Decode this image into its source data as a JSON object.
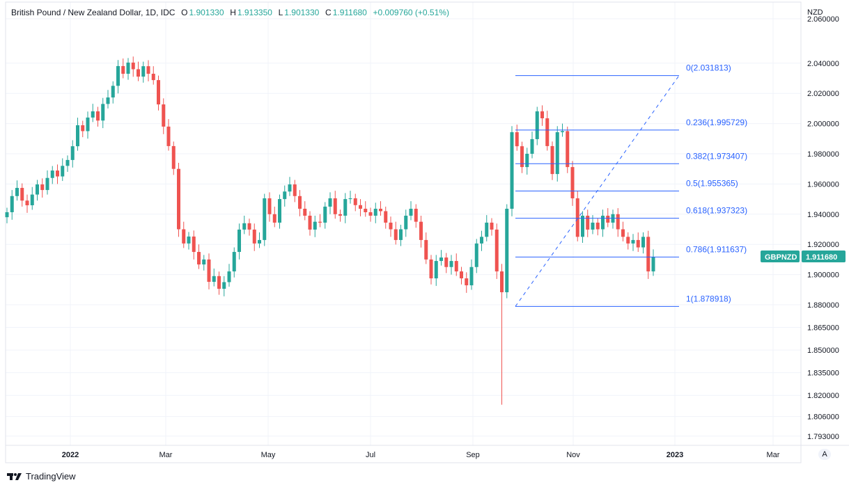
{
  "legend": {
    "symbol": "British Pound / New Zealand Dollar, 1D, IDC",
    "open_label": "O",
    "open": "1.901330",
    "high_label": "H",
    "high": "1.913350",
    "low_label": "L",
    "low": "1.901330",
    "close_label": "C",
    "close": "1.911680",
    "change": "+0.009760 (+0.51%)"
  },
  "price_axis": {
    "currency": "NZD",
    "auto_label": "A"
  },
  "last_price": {
    "ticker": "GBPNZD",
    "value": "1.911680"
  },
  "brand": "TradingView",
  "colors": {
    "up": "#26a69a",
    "down": "#ef5350",
    "fib": "#2962ff",
    "grid": "#f0f3fa"
  },
  "chart_data": {
    "type": "candlestick",
    "title": "British Pound / New Zealand Dollar, 1D, IDC",
    "ylabel": "NZD",
    "ylim": [
      1.793,
      2.06
    ],
    "y_ticks": [
      "2.060000",
      "2.040000",
      "2.020000",
      "2.000000",
      "1.980000",
      "1.960000",
      "1.940000",
      "1.920000",
      "1.900000",
      "1.880000",
      "1.865000",
      "1.850000",
      "1.835000",
      "1.820000",
      "1.806000",
      "1.793000"
    ],
    "x_ticks": [
      "2022",
      "Mar",
      "May",
      "Jul",
      "Sep",
      "Nov",
      "2023",
      "Mar"
    ],
    "closes": [
      1.9413,
      1.952,
      1.9574,
      1.949,
      1.9459,
      1.953,
      1.9597,
      1.956,
      1.964,
      1.9689,
      1.965,
      1.972,
      1.9759,
      1.985,
      1.9989,
      1.995,
      2.004,
      2.0081,
      2.002,
      2.013,
      2.0173,
      2.025,
      2.0381,
      2.033,
      2.0404,
      2.036,
      2.0311,
      2.038,
      2.033,
      2.0288,
      2.0127,
      1.998,
      1.9851,
      1.97,
      1.93,
      1.9206,
      1.9252,
      1.915,
      1.9067,
      1.91,
      1.8952,
      1.899,
      1.8906,
      1.895,
      1.9021,
      1.915,
      1.9298,
      1.934,
      1.9298,
      1.9206,
      1.9229,
      1.9505,
      1.94,
      1.9344,
      1.95,
      1.955,
      1.9597,
      1.952,
      1.9436,
      1.939,
      1.9298,
      1.935,
      1.9344,
      1.945,
      1.9505,
      1.94,
      1.939,
      1.95,
      1.9505,
      1.946,
      1.9436,
      1.9413,
      1.939,
      1.9436,
      1.942,
      1.9344,
      1.93,
      1.9229,
      1.93,
      1.939,
      1.9436,
      1.935,
      1.9229,
      1.91,
      1.8975,
      1.909,
      1.9113,
      1.905,
      1.909,
      1.9021,
      1.8975,
      1.8929,
      1.905,
      1.9206,
      1.925,
      1.9344,
      1.9298,
      1.9021,
      1.8883,
      1.9436,
      1.9943,
      1.985,
      1.9712,
      1.98,
      1.9897,
      2.0081,
      2.0035,
      1.9851,
      1.9666,
      1.9943,
      1.995,
      1.9712,
      1.9505,
      1.925,
      1.939,
      1.9298,
      1.9344,
      1.93,
      1.939,
      1.9344,
      1.94,
      1.93,
      1.925,
      1.9206,
      1.9229,
      1.918,
      1.925,
      1.9021,
      1.91168
    ],
    "first_open": 1.938,
    "notable_low": {
      "index": 98,
      "value": 1.8138
    },
    "fibonacci": [
      {
        "label": "0(2.031813)",
        "value": 2.031813
      },
      {
        "label": "0.236(1.995729)",
        "value": 1.995729
      },
      {
        "label": "0.382(1.973407)",
        "value": 1.973407
      },
      {
        "label": "0.5(1.955365)",
        "value": 1.955365
      },
      {
        "label": "0.618(1.937323)",
        "value": 1.937323
      },
      {
        "label": "0.786(1.911637)",
        "value": 1.911637
      },
      {
        "label": "1(1.878918)",
        "value": 1.878918
      }
    ]
  }
}
